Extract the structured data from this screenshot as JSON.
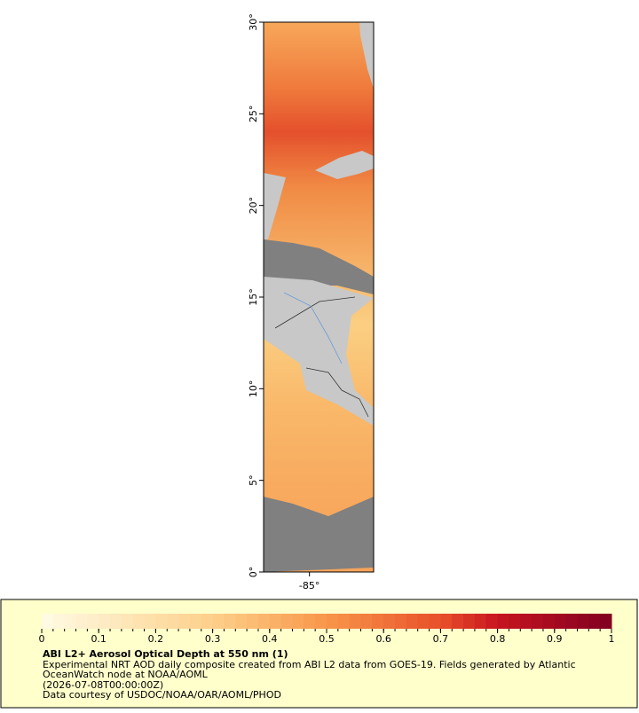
{
  "map": {
    "lat_ticks": [
      {
        "value": 0,
        "label": "0°"
      },
      {
        "value": 5,
        "label": "5°"
      },
      {
        "value": 10,
        "label": "10°"
      },
      {
        "value": 15,
        "label": "15°"
      },
      {
        "value": 20,
        "label": "20°"
      },
      {
        "value": 25,
        "label": "25°"
      },
      {
        "value": 30,
        "label": "30°"
      }
    ],
    "lat_range": [
      0,
      30
    ],
    "lon_ticks": [
      {
        "value": -85,
        "label": "-85°"
      }
    ],
    "lon_range": [
      -87.5,
      -81.5
    ]
  },
  "colorbar": {
    "range": [
      0,
      1
    ],
    "ticks": [
      0,
      0.1,
      0.2,
      0.3,
      0.4,
      0.5,
      0.6,
      0.7,
      0.8,
      0.9,
      1
    ]
  },
  "legend": {
    "title": "ABI L2+ Aerosol Optical Depth at 550 nm (1)",
    "lines": [
      "Experimental NRT AOD daily composite created from ABI L2 data from GOES-19. Fields generated by Atlantic",
      "OceanWatch node at NOAA/AOML",
      "(2026-07-08T00:00:00Z)",
      "Data courtesy of USDOC/NOAA/OAR/AOML/PHOD"
    ]
  }
}
